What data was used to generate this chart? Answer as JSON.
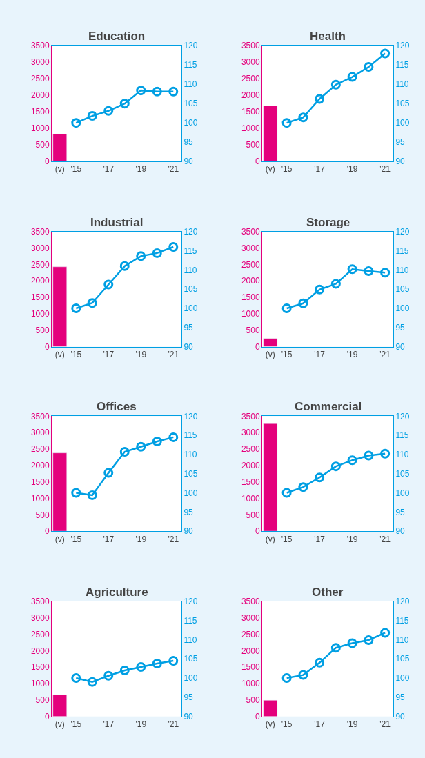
{
  "chart_data": [
    {
      "type": "bar",
      "title": "Education",
      "categories": [
        "(v)",
        "'15",
        null,
        "'17",
        null,
        "'19",
        null,
        "'21"
      ],
      "ylim": [
        0,
        3500
      ],
      "yticks": [
        0,
        500,
        1000,
        1500,
        2000,
        2500,
        3000,
        3500
      ],
      "y2lim": [
        90,
        120
      ],
      "y2ticks": [
        90,
        95,
        100,
        105,
        110,
        115,
        120
      ],
      "series": [
        {
          "color": "#e4007c",
          "values": [
            830,
            null,
            null,
            null,
            null,
            null,
            null,
            null
          ]
        },
        {
          "type": "line",
          "axis": "y2",
          "color": "#009fe3",
          "marker": "circle",
          "values": [
            null,
            100,
            101.8,
            103.1,
            105,
            108.4,
            108.1,
            108.1
          ]
        }
      ]
    },
    {
      "type": "bar",
      "title": "Health",
      "categories": [
        "(v)",
        "'15",
        null,
        "'17",
        null,
        "'19",
        null,
        "'21"
      ],
      "ylim": [
        0,
        3500
      ],
      "yticks": [
        0,
        500,
        1000,
        1500,
        2000,
        2500,
        3000,
        3500
      ],
      "y2lim": [
        90,
        120
      ],
      "y2ticks": [
        90,
        95,
        100,
        105,
        110,
        115,
        120
      ],
      "series": [
        {
          "color": "#e4007c",
          "values": [
            1680,
            null,
            null,
            null,
            null,
            null,
            null,
            null
          ]
        },
        {
          "type": "line",
          "axis": "y2",
          "color": "#009fe3",
          "marker": "circle",
          "values": [
            null,
            100,
            101.4,
            106.2,
            109.9,
            111.9,
            114.5,
            118
          ]
        }
      ]
    },
    {
      "type": "bar",
      "title": "Industrial",
      "categories": [
        "(v)",
        "'15",
        null,
        "'17",
        null,
        "'19",
        null,
        "'21"
      ],
      "ylim": [
        0,
        3500
      ],
      "yticks": [
        0,
        500,
        1000,
        1500,
        2000,
        2500,
        3000,
        3500
      ],
      "y2lim": [
        90,
        120
      ],
      "y2ticks": [
        90,
        95,
        100,
        105,
        110,
        115,
        120
      ],
      "series": [
        {
          "color": "#e4007c",
          "values": [
            2430,
            null,
            null,
            null,
            null,
            null,
            null,
            null
          ]
        },
        {
          "type": "line",
          "axis": "y2",
          "color": "#009fe3",
          "marker": "circle",
          "values": [
            null,
            100,
            101.4,
            106.2,
            111,
            113.6,
            114.4,
            116
          ]
        }
      ]
    },
    {
      "type": "bar",
      "title": "Storage",
      "categories": [
        "(v)",
        "'15",
        null,
        "'17",
        null,
        "'19",
        null,
        "'21"
      ],
      "ylim": [
        0,
        3500
      ],
      "yticks": [
        0,
        500,
        1000,
        1500,
        2000,
        2500,
        3000,
        3500
      ],
      "y2lim": [
        90,
        120
      ],
      "y2ticks": [
        90,
        95,
        100,
        105,
        110,
        115,
        120
      ],
      "series": [
        {
          "color": "#e4007c",
          "values": [
            250,
            null,
            null,
            null,
            null,
            null,
            null,
            null
          ]
        },
        {
          "type": "line",
          "axis": "y2",
          "color": "#009fe3",
          "marker": "circle",
          "values": [
            null,
            100,
            101.3,
            104.9,
            106.4,
            110.2,
            109.7,
            109.3
          ]
        }
      ]
    },
    {
      "type": "bar",
      "title": "Offices",
      "categories": [
        "(v)",
        "'15",
        null,
        "'17",
        null,
        "'19",
        null,
        "'21"
      ],
      "ylim": [
        0,
        3500
      ],
      "yticks": [
        0,
        500,
        1000,
        1500,
        2000,
        2500,
        3000,
        3500
      ],
      "y2lim": [
        90,
        120
      ],
      "y2ticks": [
        90,
        95,
        100,
        105,
        110,
        115,
        120
      ],
      "series": [
        {
          "color": "#e4007c",
          "values": [
            2380,
            null,
            null,
            null,
            null,
            null,
            null,
            null
          ]
        },
        {
          "type": "line",
          "axis": "y2",
          "color": "#009fe3",
          "marker": "circle",
          "values": [
            null,
            100,
            99.4,
            105.2,
            110.7,
            112,
            113.4,
            114.5
          ]
        }
      ]
    },
    {
      "type": "bar",
      "title": "Commercial",
      "categories": [
        "(v)",
        "'15",
        null,
        "'17",
        null,
        "'19",
        null,
        "'21"
      ],
      "ylim": [
        0,
        3500
      ],
      "yticks": [
        0,
        500,
        1000,
        1500,
        2000,
        2500,
        3000,
        3500
      ],
      "y2lim": [
        90,
        120
      ],
      "y2ticks": [
        90,
        95,
        100,
        105,
        110,
        115,
        120
      ],
      "series": [
        {
          "color": "#e4007c",
          "values": [
            3270,
            null,
            null,
            null,
            null,
            null,
            null,
            null
          ]
        },
        {
          "type": "line",
          "axis": "y2",
          "color": "#009fe3",
          "marker": "circle",
          "values": [
            null,
            100,
            101.5,
            104,
            106.9,
            108.5,
            109.7,
            110.2
          ]
        }
      ]
    },
    {
      "type": "bar",
      "title": "Agriculture",
      "categories": [
        "(v)",
        "'15",
        null,
        "'17",
        null,
        "'19",
        null,
        "'21"
      ],
      "ylim": [
        0,
        3500
      ],
      "yticks": [
        0,
        500,
        1000,
        1500,
        2000,
        2500,
        3000,
        3500
      ],
      "y2lim": [
        90,
        120
      ],
      "y2ticks": [
        90,
        95,
        100,
        105,
        110,
        115,
        120
      ],
      "series": [
        {
          "color": "#e4007c",
          "values": [
            660,
            null,
            null,
            null,
            null,
            null,
            null,
            null
          ]
        },
        {
          "type": "line",
          "axis": "y2",
          "color": "#009fe3",
          "marker": "circle",
          "values": [
            null,
            100,
            99,
            100.6,
            102,
            102.9,
            103.8,
            104.5
          ]
        }
      ]
    },
    {
      "type": "bar",
      "title": "Other",
      "categories": [
        "(v)",
        "'15",
        null,
        "'17",
        null,
        "'19",
        null,
        "'21"
      ],
      "ylim": [
        0,
        3500
      ],
      "yticks": [
        0,
        500,
        1000,
        1500,
        2000,
        2500,
        3000,
        3500
      ],
      "y2lim": [
        90,
        120
      ],
      "y2ticks": [
        90,
        95,
        100,
        105,
        110,
        115,
        120
      ],
      "series": [
        {
          "color": "#e4007c",
          "values": [
            490,
            null,
            null,
            null,
            null,
            null,
            null,
            null
          ]
        },
        {
          "type": "line",
          "axis": "y2",
          "color": "#009fe3",
          "marker": "circle",
          "values": [
            null,
            100,
            100.8,
            104,
            107.9,
            109.1,
            109.9,
            111.8
          ]
        }
      ]
    }
  ]
}
